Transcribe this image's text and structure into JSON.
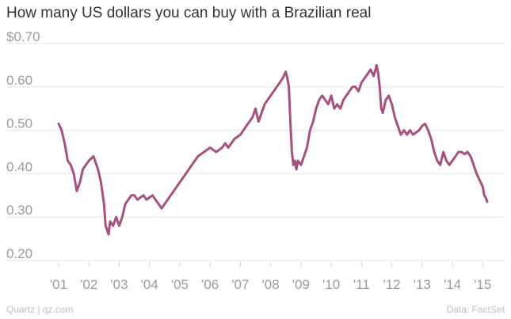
{
  "title": "How many US dollars you can buy with a Brazilian real",
  "source": "Data: FactSet",
  "credit": "Quartz | qz.com",
  "chart_data": {
    "type": "line",
    "title": "How many US dollars you can buy with a Brazilian real",
    "xlabel": "",
    "ylabel": "",
    "xlim": [
      2001.0,
      2015.15
    ],
    "ylim": [
      0.2,
      0.7
    ],
    "y_ticks": [
      0.2,
      0.3,
      0.4,
      0.5,
      0.6,
      0.7
    ],
    "y_tick_labels": [
      "0.20",
      "0.30",
      "0.40",
      "0.50",
      "0.60",
      "$0.70"
    ],
    "x_ticks": [
      2001,
      2002,
      2003,
      2004,
      2005,
      2006,
      2007,
      2008,
      2009,
      2010,
      2011,
      2012,
      2013,
      2014,
      2015
    ],
    "x_tick_labels": [
      "'01",
      "'02",
      "'03",
      "'04",
      "'05",
      "'06",
      "'07",
      "'08",
      "'09",
      "'10",
      "'11",
      "'12",
      "'13",
      "'14",
      "'15"
    ],
    "grid": true,
    "legend": "none",
    "series_color": "#a5527f",
    "series": [
      {
        "x": [
          2001.0,
          2001.1,
          2001.2,
          2001.3,
          2001.4,
          2001.5,
          2001.6,
          2001.7,
          2001.8,
          2001.9,
          2002.0,
          2002.15,
          2002.3,
          2002.4,
          2002.5,
          2002.55,
          2002.6,
          2002.65,
          2002.7,
          2002.8,
          2002.9,
          2003.0,
          2003.1,
          2003.2,
          2003.3,
          2003.4,
          2003.5,
          2003.6,
          2003.7,
          2003.8,
          2003.9,
          2004.0,
          2004.1,
          2004.2,
          2004.3,
          2004.4,
          2004.5,
          2004.6,
          2004.7,
          2004.8,
          2004.9,
          2005.0,
          2005.2,
          2005.4,
          2005.5,
          2005.6,
          2005.8,
          2006.0,
          2006.2,
          2006.4,
          2006.5,
          2006.6,
          2006.8,
          2007.0,
          2007.2,
          2007.4,
          2007.5,
          2007.6,
          2007.8,
          2008.0,
          2008.2,
          2008.4,
          2008.5,
          2008.55,
          2008.6,
          2008.65,
          2008.7,
          2008.75,
          2008.8,
          2008.85,
          2008.9,
          2009.0,
          2009.1,
          2009.2,
          2009.3,
          2009.4,
          2009.5,
          2009.6,
          2009.7,
          2009.8,
          2009.9,
          2010.0,
          2010.1,
          2010.2,
          2010.3,
          2010.4,
          2010.5,
          2010.6,
          2010.7,
          2010.8,
          2010.9,
          2011.0,
          2011.1,
          2011.2,
          2011.3,
          2011.4,
          2011.5,
          2011.55,
          2011.6,
          2011.65,
          2011.7,
          2011.8,
          2011.9,
          2012.0,
          2012.1,
          2012.2,
          2012.3,
          2012.4,
          2012.5,
          2012.6,
          2012.7,
          2012.8,
          2012.9,
          2013.0,
          2013.1,
          2013.2,
          2013.3,
          2013.4,
          2013.5,
          2013.6,
          2013.7,
          2013.8,
          2013.9,
          2014.0,
          2014.1,
          2014.2,
          2014.3,
          2014.4,
          2014.5,
          2014.6,
          2014.7,
          2014.8,
          2014.9,
          2015.0,
          2015.05,
          2015.1,
          2015.15
        ],
        "values": [
          0.515,
          0.5,
          0.47,
          0.43,
          0.42,
          0.4,
          0.36,
          0.38,
          0.41,
          0.42,
          0.43,
          0.44,
          0.41,
          0.38,
          0.33,
          0.28,
          0.27,
          0.26,
          0.29,
          0.28,
          0.3,
          0.28,
          0.3,
          0.33,
          0.34,
          0.35,
          0.35,
          0.34,
          0.345,
          0.35,
          0.34,
          0.345,
          0.35,
          0.34,
          0.33,
          0.32,
          0.33,
          0.34,
          0.35,
          0.36,
          0.37,
          0.38,
          0.4,
          0.42,
          0.43,
          0.44,
          0.45,
          0.46,
          0.45,
          0.46,
          0.47,
          0.46,
          0.48,
          0.49,
          0.51,
          0.53,
          0.55,
          0.52,
          0.56,
          0.58,
          0.6,
          0.62,
          0.635,
          0.62,
          0.6,
          0.52,
          0.45,
          0.42,
          0.43,
          0.41,
          0.43,
          0.42,
          0.44,
          0.46,
          0.5,
          0.52,
          0.55,
          0.57,
          0.58,
          0.57,
          0.56,
          0.58,
          0.55,
          0.56,
          0.55,
          0.57,
          0.58,
          0.59,
          0.6,
          0.6,
          0.59,
          0.61,
          0.62,
          0.63,
          0.64,
          0.625,
          0.65,
          0.63,
          0.6,
          0.55,
          0.54,
          0.57,
          0.58,
          0.56,
          0.53,
          0.51,
          0.49,
          0.5,
          0.49,
          0.5,
          0.49,
          0.495,
          0.5,
          0.51,
          0.515,
          0.5,
          0.48,
          0.45,
          0.43,
          0.42,
          0.45,
          0.43,
          0.42,
          0.43,
          0.44,
          0.45,
          0.45,
          0.445,
          0.45,
          0.44,
          0.42,
          0.4,
          0.385,
          0.37,
          0.35,
          0.345,
          0.335
        ]
      }
    ]
  }
}
